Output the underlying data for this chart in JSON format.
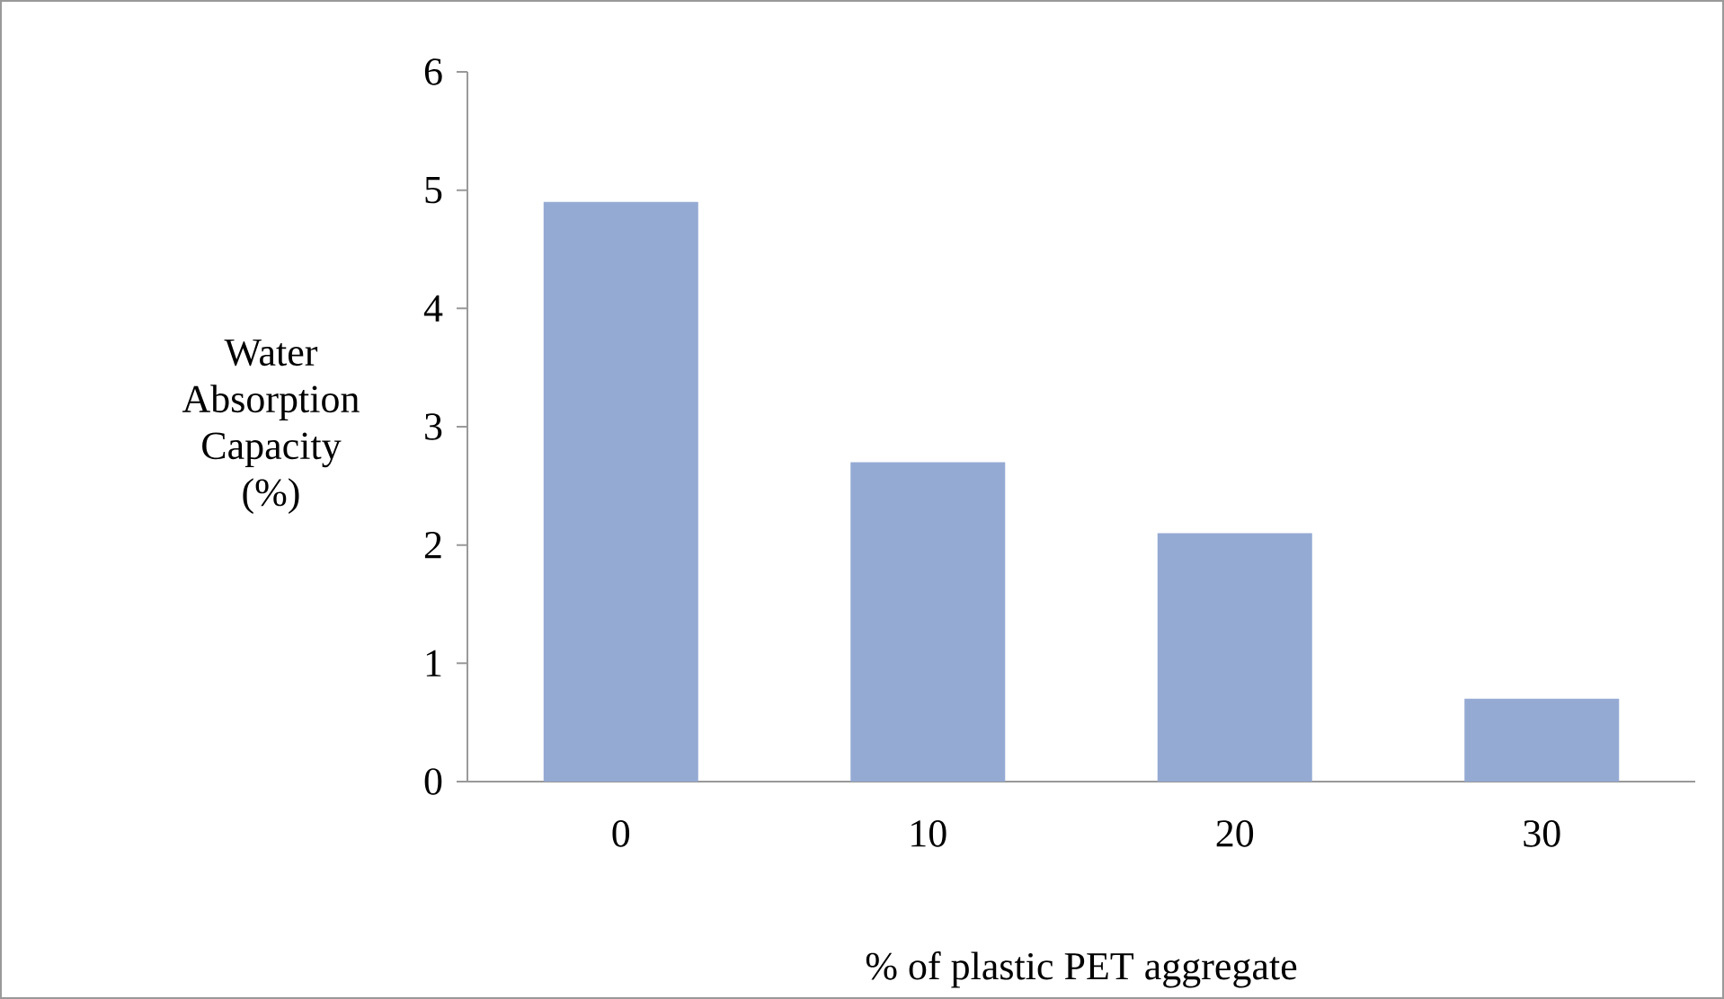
{
  "chart_data": {
    "type": "bar",
    "xlabel": "% of plastic PET aggregate",
    "ylabel": "Water Absorption Capacity (%)",
    "categories": [
      "0",
      "10",
      "20",
      "30"
    ],
    "values": [
      4.9,
      2.7,
      2.1,
      0.7
    ],
    "color": "#95aad3",
    "ylim": [
      0,
      6
    ],
    "yticks": [
      0,
      1,
      2,
      3,
      4,
      5,
      6
    ]
  }
}
